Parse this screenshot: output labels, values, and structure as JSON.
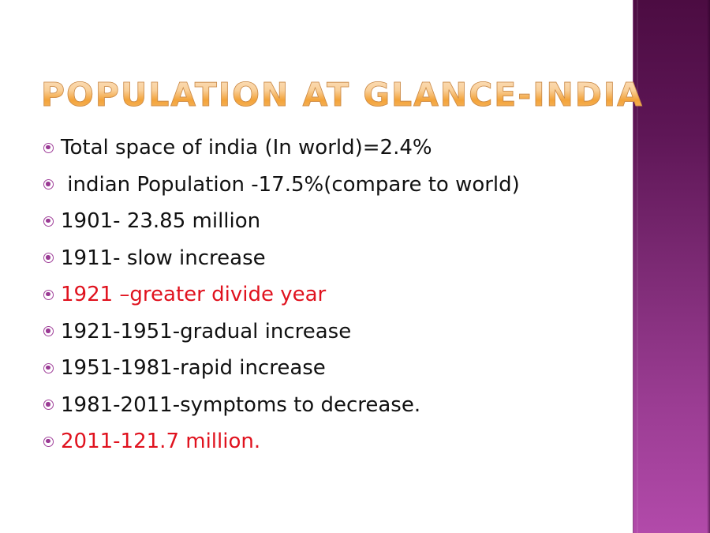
{
  "slide": {
    "title": "POPULATION AT GLANCE-INDIA",
    "accent_colors": {
      "title_gradient_top": "#fde6cc",
      "title_gradient_bottom": "#f3a33a",
      "sidebar_top": "#4c0c42",
      "sidebar_bottom": "#b24aaa",
      "highlight_text": "#e0121e",
      "bullet_icon": "#a0409a"
    },
    "bullets": [
      {
        "text": "Total space of india (In world)=2.4%",
        "highlight": false
      },
      {
        "text": " indian Population -17.5%(compare to world)",
        "highlight": false
      },
      {
        "text": "1901- 23.85 million",
        "highlight": false
      },
      {
        "text": "1911- slow increase",
        "highlight": false
      },
      {
        "text": "1921 –greater divide year",
        "highlight": true
      },
      {
        "text": "1921-1951-gradual increase",
        "highlight": false
      },
      {
        "text": "1951-1981-rapid increase",
        "highlight": false
      },
      {
        "text": "1981-2011-symptoms to decrease.",
        "highlight": false
      },
      {
        "text": "2011-121.7 million.",
        "highlight": true
      }
    ],
    "bullet_icon": "circle-dot-icon"
  }
}
